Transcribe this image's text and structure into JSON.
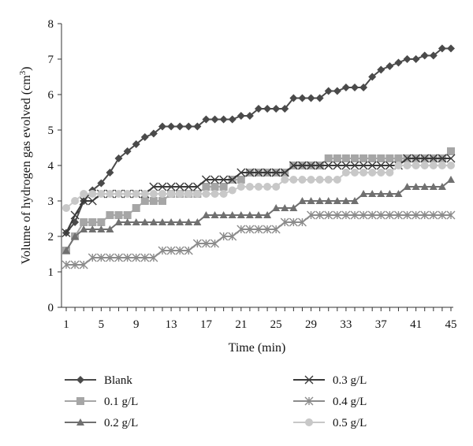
{
  "chart_data": {
    "type": "line",
    "title": "",
    "xlabel": "Time (min)",
    "ylabel": "Volume of hydrogen gas evolved (cm",
    "ylabel_sup": "3",
    "ylabel_end": ")",
    "x_ticks": [
      1,
      5,
      9,
      13,
      17,
      21,
      25,
      29,
      33,
      37,
      41,
      45
    ],
    "x_tick_labels": [
      "1",
      "5",
      "9",
      "13",
      "17",
      "21",
      "25",
      "29",
      "33",
      "37",
      "41",
      "45"
    ],
    "y_ticks": [
      0,
      1,
      2,
      3,
      4,
      5,
      6,
      7,
      8
    ],
    "y_tick_labels": [
      "0",
      "1",
      "2",
      "3",
      "4",
      "5",
      "6",
      "7",
      "8"
    ],
    "xlim": [
      1,
      45
    ],
    "ylim": [
      0,
      8
    ],
    "grid": false,
    "legend_position": "bottom",
    "x": [
      1,
      2,
      3,
      4,
      5,
      6,
      7,
      8,
      9,
      10,
      11,
      12,
      13,
      14,
      15,
      16,
      17,
      18,
      19,
      20,
      21,
      22,
      23,
      24,
      25,
      26,
      27,
      28,
      29,
      30,
      31,
      32,
      33,
      34,
      35,
      36,
      37,
      38,
      39,
      40,
      41,
      42,
      43,
      44,
      45
    ],
    "series": [
      {
        "name": "Blank",
        "marker": "diamond",
        "color": "#4a4a4a",
        "values": [
          2.1,
          2.4,
          3.0,
          3.3,
          3.5,
          3.8,
          4.2,
          4.4,
          4.6,
          4.8,
          4.9,
          5.1,
          5.1,
          5.1,
          5.1,
          5.1,
          5.3,
          5.3,
          5.3,
          5.3,
          5.4,
          5.4,
          5.6,
          5.6,
          5.6,
          5.6,
          5.9,
          5.9,
          5.9,
          5.9,
          6.1,
          6.1,
          6.2,
          6.2,
          6.2,
          6.5,
          6.7,
          6.8,
          6.9,
          7.0,
          7.0,
          7.1,
          7.1,
          7.3,
          7.3
        ]
      },
      {
        "name": "0.1 g/L",
        "marker": "square",
        "color": "#a6a6a6",
        "values": [
          1.6,
          2.0,
          2.4,
          2.4,
          2.4,
          2.6,
          2.6,
          2.6,
          2.8,
          3.0,
          3.0,
          3.0,
          3.2,
          3.2,
          3.2,
          3.2,
          3.4,
          3.4,
          3.4,
          3.6,
          3.6,
          3.8,
          3.8,
          3.8,
          3.8,
          3.8,
          4.0,
          4.0,
          4.0,
          4.0,
          4.2,
          4.2,
          4.2,
          4.2,
          4.2,
          4.2,
          4.2,
          4.2,
          4.2,
          4.2,
          4.2,
          4.2,
          4.2,
          4.2,
          4.4
        ]
      },
      {
        "name": "0.2 g/L",
        "marker": "triangle",
        "color": "#707070",
        "values": [
          1.6,
          2.0,
          2.2,
          2.2,
          2.2,
          2.2,
          2.4,
          2.4,
          2.4,
          2.4,
          2.4,
          2.4,
          2.4,
          2.4,
          2.4,
          2.4,
          2.6,
          2.6,
          2.6,
          2.6,
          2.6,
          2.6,
          2.6,
          2.6,
          2.8,
          2.8,
          2.8,
          3.0,
          3.0,
          3.0,
          3.0,
          3.0,
          3.0,
          3.0,
          3.2,
          3.2,
          3.2,
          3.2,
          3.2,
          3.4,
          3.4,
          3.4,
          3.4,
          3.4,
          3.6
        ]
      },
      {
        "name": "0.3 g/L",
        "marker": "x",
        "color": "#3a3a3a",
        "values": [
          2.1,
          2.6,
          3.0,
          3.0,
          3.2,
          3.2,
          3.2,
          3.2,
          3.2,
          3.2,
          3.4,
          3.4,
          3.4,
          3.4,
          3.4,
          3.4,
          3.6,
          3.6,
          3.6,
          3.6,
          3.8,
          3.8,
          3.8,
          3.8,
          3.8,
          3.8,
          4.0,
          4.0,
          4.0,
          4.0,
          4.0,
          4.0,
          4.0,
          4.0,
          4.0,
          4.0,
          4.0,
          4.0,
          4.0,
          4.2,
          4.2,
          4.2,
          4.2,
          4.2,
          4.2
        ]
      },
      {
        "name": "0.4 g/L",
        "marker": "star",
        "color": "#8c8c8c",
        "values": [
          1.2,
          1.2,
          1.2,
          1.4,
          1.4,
          1.4,
          1.4,
          1.4,
          1.4,
          1.4,
          1.4,
          1.6,
          1.6,
          1.6,
          1.6,
          1.8,
          1.8,
          1.8,
          2.0,
          2.0,
          2.2,
          2.2,
          2.2,
          2.2,
          2.2,
          2.4,
          2.4,
          2.4,
          2.6,
          2.6,
          2.6,
          2.6,
          2.6,
          2.6,
          2.6,
          2.6,
          2.6,
          2.6,
          2.6,
          2.6,
          2.6,
          2.6,
          2.6,
          2.6,
          2.6
        ]
      },
      {
        "name": "0.5 g/L",
        "marker": "circle",
        "color": "#c8c8c8",
        "values": [
          2.8,
          3.0,
          3.2,
          3.2,
          3.2,
          3.2,
          3.2,
          3.2,
          3.2,
          3.2,
          3.2,
          3.2,
          3.2,
          3.2,
          3.2,
          3.2,
          3.2,
          3.2,
          3.2,
          3.3,
          3.4,
          3.4,
          3.4,
          3.4,
          3.4,
          3.6,
          3.6,
          3.6,
          3.6,
          3.6,
          3.6,
          3.6,
          3.8,
          3.8,
          3.8,
          3.8,
          3.8,
          3.8,
          4.0,
          4.0,
          4.0,
          4.0,
          4.0,
          4.0,
          4.0
        ]
      }
    ]
  }
}
